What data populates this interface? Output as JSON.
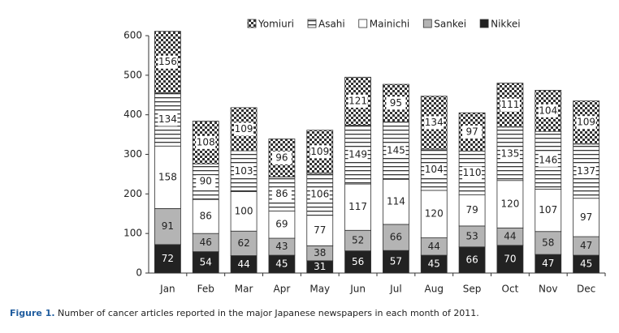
{
  "chart_data": {
    "type": "stacked_bar",
    "categories": [
      "Jan",
      "Feb",
      "Mar",
      "Apr",
      "May",
      "Jun",
      "Jul",
      "Aug",
      "Sep",
      "Oct",
      "Nov",
      "Dec"
    ],
    "series": [
      {
        "name": "Nikkei",
        "color": "#222222",
        "values": [
          72,
          54,
          44,
          45,
          31,
          56,
          57,
          45,
          66,
          70,
          47,
          45
        ]
      },
      {
        "name": "Sankei",
        "color": "#b4b4b4",
        "values": [
          91,
          46,
          62,
          43,
          38,
          52,
          66,
          44,
          53,
          44,
          58,
          47
        ]
      },
      {
        "name": "Mainichi",
        "color": "#ffffff",
        "values": [
          158,
          86,
          100,
          69,
          77,
          117,
          114,
          120,
          79,
          120,
          107,
          97
        ]
      },
      {
        "name": "Asahi",
        "color": "#333333",
        "pattern": "hlines",
        "values": [
          134,
          90,
          103,
          86,
          106,
          149,
          145,
          104,
          110,
          135,
          146,
          137
        ]
      },
      {
        "name": "Yomiuri",
        "color": "#333333",
        "pattern": "checker",
        "values": [
          156,
          108,
          109,
          96,
          109,
          121,
          95,
          134,
          97,
          111,
          104,
          109
        ]
      }
    ],
    "ylim": [
      0,
      650
    ],
    "yticks": [
      0,
      100,
      200,
      300,
      400,
      500,
      600
    ],
    "legend": "top",
    "caption": {
      "label": "Figure 1.",
      "text": "Number of cancer articles reported in the major Japanese newspapers in each month of 2011."
    }
  }
}
